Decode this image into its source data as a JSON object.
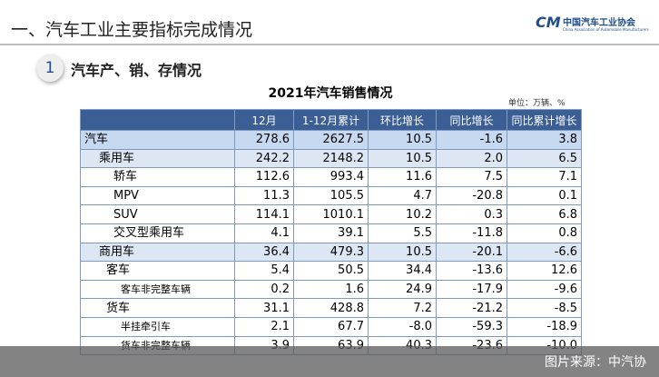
{
  "header": {
    "title": "一、汽车工业主要指标完成情况",
    "logo": "中国汽车工业协会",
    "logo_en": "China Association of Automobile Manufacturers"
  },
  "section": {
    "number": "1",
    "title": "汽车产、销、存情况"
  },
  "table": {
    "title": "2021年汽车销售情况",
    "unit": "单位：万辆、%",
    "headers": [
      "12月",
      "1-12月累计",
      "环比增长",
      "同比增长",
      "同比累计增长"
    ],
    "rows": [
      [
        "汽车",
        "278.6",
        "2627.5",
        "10.5",
        "-1.6",
        "3.8"
      ],
      [
        "乘用车",
        "242.2",
        "2148.2",
        "10.5",
        "2.0",
        "6.5"
      ],
      [
        "轿车",
        "112.6",
        "993.4",
        "11.6",
        "7.5",
        "7.1"
      ],
      [
        "MPV",
        "11.3",
        "105.5",
        "4.7",
        "-20.8",
        "0.1"
      ],
      [
        "SUV",
        "114.1",
        "1010.1",
        "10.2",
        "0.3",
        "6.8"
      ],
      [
        "交叉型乘用车",
        "4.1",
        "39.1",
        "5.5",
        "-11.8",
        "0.8"
      ],
      [
        "商用车",
        "36.4",
        "479.3",
        "10.5",
        "-20.1",
        "-6.6"
      ],
      [
        "客车",
        "5.4",
        "50.5",
        "34.4",
        "-13.6",
        "12.6"
      ],
      [
        "客车非完整车辆",
        "0.2",
        "1.6",
        "24.9",
        "-17.9",
        "-9.6"
      ],
      [
        "货车",
        "31.1",
        "428.8",
        "7.2",
        "-21.2",
        "-8.5"
      ],
      [
        "半挂牵引车",
        "2.1",
        "67.7",
        "-8.0",
        "-59.3",
        "-18.9"
      ],
      [
        "货车非完整车辆",
        "3.9",
        "63.9",
        "40.3",
        "-23.6",
        "-10.0"
      ]
    ]
  },
  "caption": "图片来源：中汽协"
}
